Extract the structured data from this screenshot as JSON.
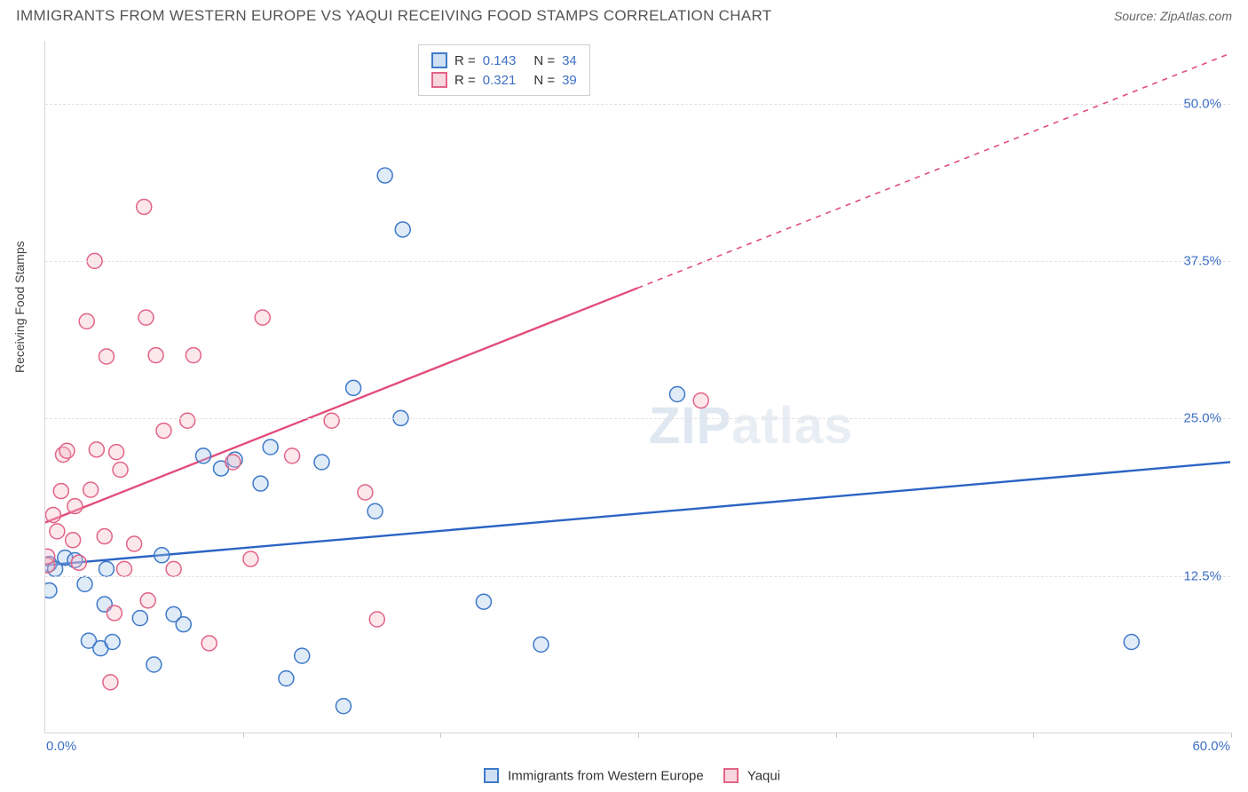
{
  "header": {
    "title": "IMMIGRANTS FROM WESTERN EUROPE VS YAQUI RECEIVING FOOD STAMPS CORRELATION CHART",
    "source": "Source: ZipAtlas.com"
  },
  "chart": {
    "type": "scatter",
    "ylabel": "Receiving Food Stamps",
    "xlim": [
      0,
      60
    ],
    "ylim": [
      0,
      55
    ],
    "xtick_positions": [
      0,
      10,
      20,
      30,
      40,
      50,
      60
    ],
    "ytick_positions": [
      12.5,
      25.0,
      37.5,
      50.0
    ],
    "ytick_labels": [
      "12.5%",
      "25.0%",
      "37.5%",
      "50.0%"
    ],
    "x_min_label": "0.0%",
    "x_max_label": "60.0%",
    "grid_color": "#e2e2e2",
    "background_color": "#ffffff",
    "axis_color": "#d6d6d6",
    "label_color": "#3e6fc4",
    "watermark": "ZIPatlas",
    "series": [
      {
        "name": "Immigrants from Western Europe",
        "short": "blue",
        "color_stroke": "#3e79c9",
        "color_fill": "#a6c5ea",
        "r_value": "0.143",
        "n_value": "34",
        "trend": {
          "x1": 0,
          "y1": 13.3,
          "x2": 60,
          "y2": 21.5,
          "solid_until_x": 60,
          "color": "#2b64c4",
          "width": 2.4
        },
        "points": [
          [
            0.2,
            13.4
          ],
          [
            0.2,
            11.3
          ],
          [
            1.0,
            13.9
          ],
          [
            1.5,
            13.7
          ],
          [
            2.2,
            7.3
          ],
          [
            2.0,
            11.8
          ],
          [
            2.8,
            6.7
          ],
          [
            3.4,
            7.2
          ],
          [
            3.0,
            10.2
          ],
          [
            3.1,
            13.0
          ],
          [
            4.8,
            9.1
          ],
          [
            5.5,
            5.4
          ],
          [
            5.9,
            14.1
          ],
          [
            6.5,
            9.4
          ],
          [
            7.0,
            8.6
          ],
          [
            8.0,
            22.0
          ],
          [
            8.9,
            21.0
          ],
          [
            9.6,
            21.7
          ],
          [
            10.9,
            19.8
          ],
          [
            11.4,
            22.7
          ],
          [
            12.2,
            4.3
          ],
          [
            13.0,
            6.1
          ],
          [
            14.0,
            21.5
          ],
          [
            15.1,
            2.1
          ],
          [
            15.6,
            27.4
          ],
          [
            16.7,
            17.6
          ],
          [
            18.0,
            25.0
          ],
          [
            17.2,
            44.3
          ],
          [
            18.1,
            40.0
          ],
          [
            22.2,
            10.4
          ],
          [
            25.1,
            7.0
          ],
          [
            32.0,
            26.9
          ],
          [
            55.0,
            7.2
          ],
          [
            0.5,
            13.0
          ]
        ]
      },
      {
        "name": "Yaqui",
        "short": "pink",
        "color_stroke": "#e26487",
        "color_fill": "#f3b9c8",
        "r_value": "0.321",
        "n_value": "39",
        "trend": {
          "x1": 0,
          "y1": 16.7,
          "x2": 60,
          "y2": 54.0,
          "solid_until_x": 30,
          "color": "#e24d7a",
          "width": 2.4
        },
        "points": [
          [
            0.1,
            13.3
          ],
          [
            0.1,
            14.0
          ],
          [
            0.4,
            17.3
          ],
          [
            0.6,
            16.0
          ],
          [
            0.8,
            19.2
          ],
          [
            0.9,
            22.1
          ],
          [
            1.1,
            22.4
          ],
          [
            1.4,
            15.3
          ],
          [
            1.5,
            18.0
          ],
          [
            1.7,
            13.5
          ],
          [
            2.1,
            32.7
          ],
          [
            2.3,
            19.3
          ],
          [
            2.5,
            37.5
          ],
          [
            2.6,
            22.5
          ],
          [
            3.0,
            15.6
          ],
          [
            3.1,
            29.9
          ],
          [
            3.3,
            4.0
          ],
          [
            3.5,
            9.5
          ],
          [
            3.6,
            22.3
          ],
          [
            3.8,
            20.9
          ],
          [
            4.0,
            13.0
          ],
          [
            4.5,
            15.0
          ],
          [
            5.0,
            41.8
          ],
          [
            5.1,
            33.0
          ],
          [
            5.2,
            10.5
          ],
          [
            5.6,
            30.0
          ],
          [
            6.0,
            24.0
          ],
          [
            6.5,
            13.0
          ],
          [
            7.2,
            24.8
          ],
          [
            7.5,
            30.0
          ],
          [
            8.3,
            7.1
          ],
          [
            9.5,
            21.5
          ],
          [
            10.4,
            13.8
          ],
          [
            11.0,
            33.0
          ],
          [
            12.5,
            22.0
          ],
          [
            14.5,
            24.8
          ],
          [
            16.2,
            19.1
          ],
          [
            16.8,
            9.0
          ],
          [
            33.2,
            26.4
          ]
        ]
      }
    ],
    "legend_bottom": [
      {
        "swatch_stroke": "#3e79c9",
        "swatch_fill": "#a6c5ea",
        "label": "Immigrants from Western Europe"
      },
      {
        "swatch_stroke": "#e26487",
        "swatch_fill": "#f3b9c8",
        "label": "Yaqui"
      }
    ]
  }
}
